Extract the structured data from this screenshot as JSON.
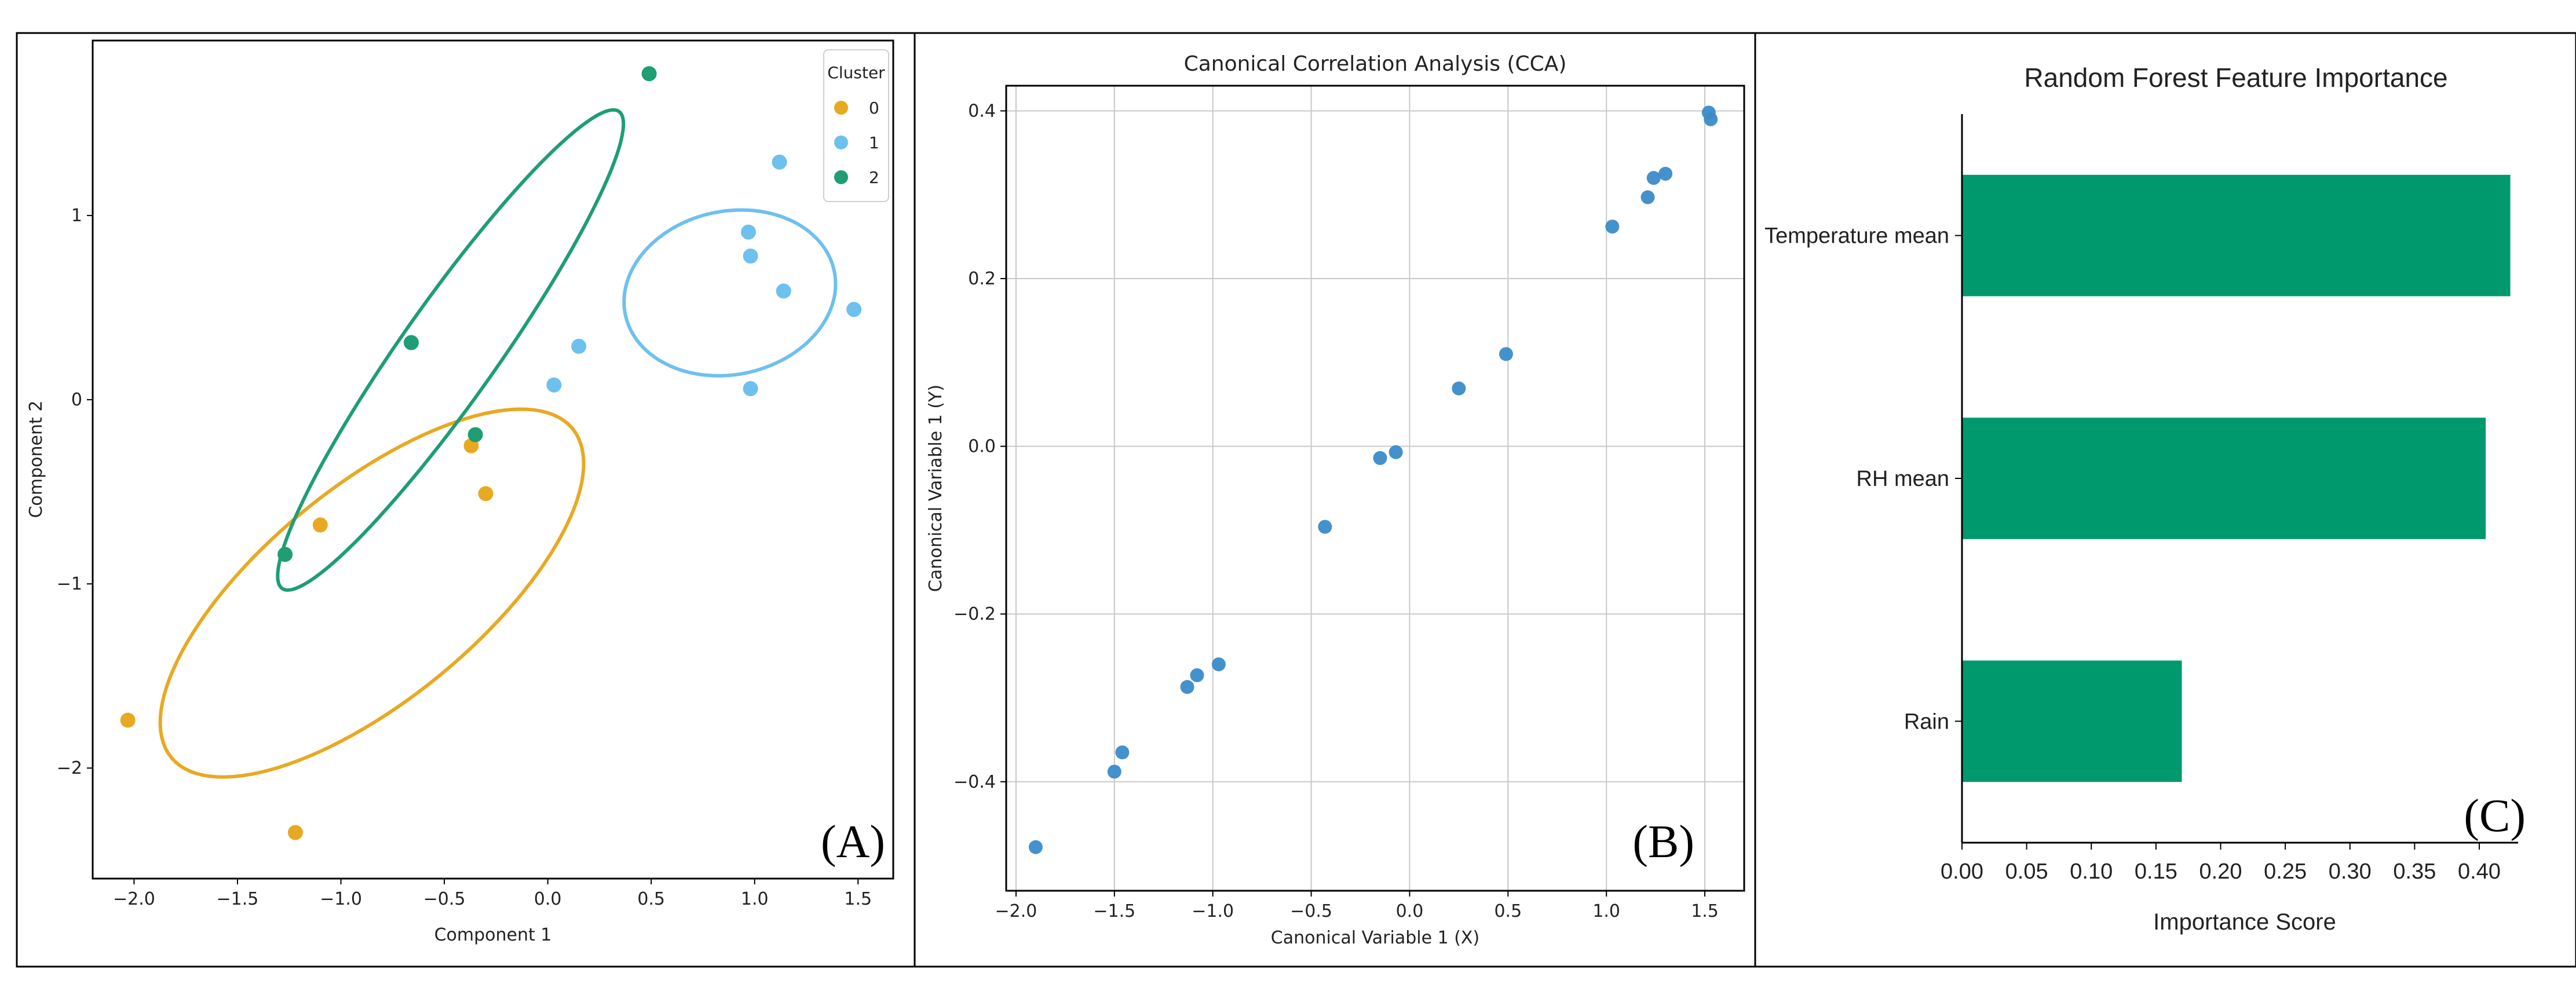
{
  "colors": {
    "cluster0": "#E8A922",
    "cluster1": "#6EC0EE",
    "cluster2": "#1E9E72",
    "cca_point": "#3B8BC8",
    "rf_bar": "#00996E",
    "grid": "#c8c8c8"
  },
  "chart_data": [
    {
      "type": "scatter",
      "panel_label": "(A)",
      "title": "",
      "xlabel": "Component 1",
      "ylabel": "Component 2",
      "xlim": [
        -2.2,
        1.67
      ],
      "ylim": [
        -2.6,
        1.95
      ],
      "xticks": [
        -2.0,
        -1.5,
        -1.0,
        -0.5,
        0.0,
        0.5,
        1.0,
        1.5
      ],
      "yticks": [
        -2,
        -1,
        0,
        1
      ],
      "xticklabels": [
        "−2.0",
        "−1.5",
        "−1.0",
        "−0.5",
        "0.0",
        "0.5",
        "1.0",
        "1.5"
      ],
      "yticklabels": [
        "−2",
        "−1",
        "0",
        "1"
      ],
      "legend": {
        "title": "Cluster",
        "placement": "top-right",
        "entries": [
          {
            "label": "0",
            "color": "#E8A922"
          },
          {
            "label": "1",
            "color": "#6EC0EE"
          },
          {
            "label": "2",
            "color": "#1E9E72"
          }
        ]
      },
      "series": [
        {
          "name": "0",
          "color": "#E8A922",
          "points": [
            [
              -2.03,
              -1.74
            ],
            [
              -1.22,
              -2.35
            ],
            [
              -1.1,
              -0.68
            ],
            [
              -0.37,
              -0.25
            ],
            [
              -0.3,
              -0.51
            ]
          ],
          "ellipse": {
            "center": [
              -0.85,
              -1.05
            ],
            "semi_major": 1.32,
            "semi_minor": 0.55,
            "angle_deg": 44
          }
        },
        {
          "name": "1",
          "color": "#6EC0EE",
          "points": [
            [
              0.03,
              0.08
            ],
            [
              0.15,
              0.29
            ],
            [
              0.97,
              0.91
            ],
            [
              0.98,
              0.78
            ],
            [
              1.12,
              1.29
            ],
            [
              1.14,
              0.59
            ],
            [
              1.48,
              0.49
            ],
            [
              0.98,
              0.06
            ]
          ],
          "ellipse": {
            "center": [
              0.88,
              0.58
            ],
            "semi_major": 0.52,
            "semi_minor": 0.44,
            "angle_deg": 20
          }
        },
        {
          "name": "2",
          "color": "#1E9E72",
          "points": [
            [
              0.49,
              1.77
            ],
            [
              -0.66,
              0.31
            ],
            [
              -0.35,
              -0.19
            ],
            [
              -1.27,
              -0.84
            ]
          ],
          "ellipse": {
            "center": [
              -0.47,
              0.27
            ],
            "semi_major": 1.53,
            "semi_minor": 0.24,
            "angle_deg": 58
          }
        }
      ]
    },
    {
      "type": "scatter",
      "panel_label": "(B)",
      "title": "Canonical Correlation Analysis (CCA)",
      "xlabel": "Canonical Variable 1 (X)",
      "ylabel": "Canonical Variable 1 (Y)",
      "xlim": [
        -2.05,
        1.7
      ],
      "ylim": [
        -0.53,
        0.43
      ],
      "grid": true,
      "xticks": [
        -2.0,
        -1.5,
        -1.0,
        -0.5,
        0.0,
        0.5,
        1.0,
        1.5
      ],
      "yticks": [
        -0.4,
        -0.2,
        0.0,
        0.2,
        0.4
      ],
      "xticklabels": [
        "−2.0",
        "−1.5",
        "−1.0",
        "−0.5",
        "0.0",
        "0.5",
        "1.0",
        "1.5"
      ],
      "yticklabels": [
        "−0.4",
        "−0.2",
        "0.0",
        "0.2",
        "0.4"
      ],
      "color": "#3B8BC8",
      "points": [
        [
          -1.9,
          -0.478
        ],
        [
          -1.5,
          -0.388
        ],
        [
          -1.46,
          -0.365
        ],
        [
          -1.13,
          -0.287
        ],
        [
          -1.08,
          -0.273
        ],
        [
          -0.97,
          -0.26
        ],
        [
          -0.43,
          -0.096
        ],
        [
          -0.15,
          -0.014
        ],
        [
          -0.07,
          -0.007
        ],
        [
          0.25,
          0.069
        ],
        [
          0.49,
          0.11
        ],
        [
          1.03,
          0.262
        ],
        [
          1.21,
          0.297
        ],
        [
          1.24,
          0.32
        ],
        [
          1.3,
          0.325
        ],
        [
          1.52,
          0.398
        ],
        [
          1.53,
          0.39
        ]
      ]
    },
    {
      "type": "bar",
      "orientation": "horizontal",
      "panel_label": "(C)",
      "title": "Random Forest Feature Importance",
      "xlabel": "Importance Score",
      "ylabel": "",
      "xlim": [
        0,
        0.43
      ],
      "xticks": [
        0.0,
        0.05,
        0.1,
        0.15,
        0.2,
        0.25,
        0.3,
        0.35,
        0.4
      ],
      "xticklabels": [
        "0.00",
        "0.05",
        "0.10",
        "0.15",
        "0.20",
        "0.25",
        "0.30",
        "0.35",
        "0.40"
      ],
      "categories": [
        "Temperature mean",
        "RH mean",
        "Rain"
      ],
      "values": [
        0.424,
        0.405,
        0.17
      ],
      "color": "#00996E"
    }
  ]
}
